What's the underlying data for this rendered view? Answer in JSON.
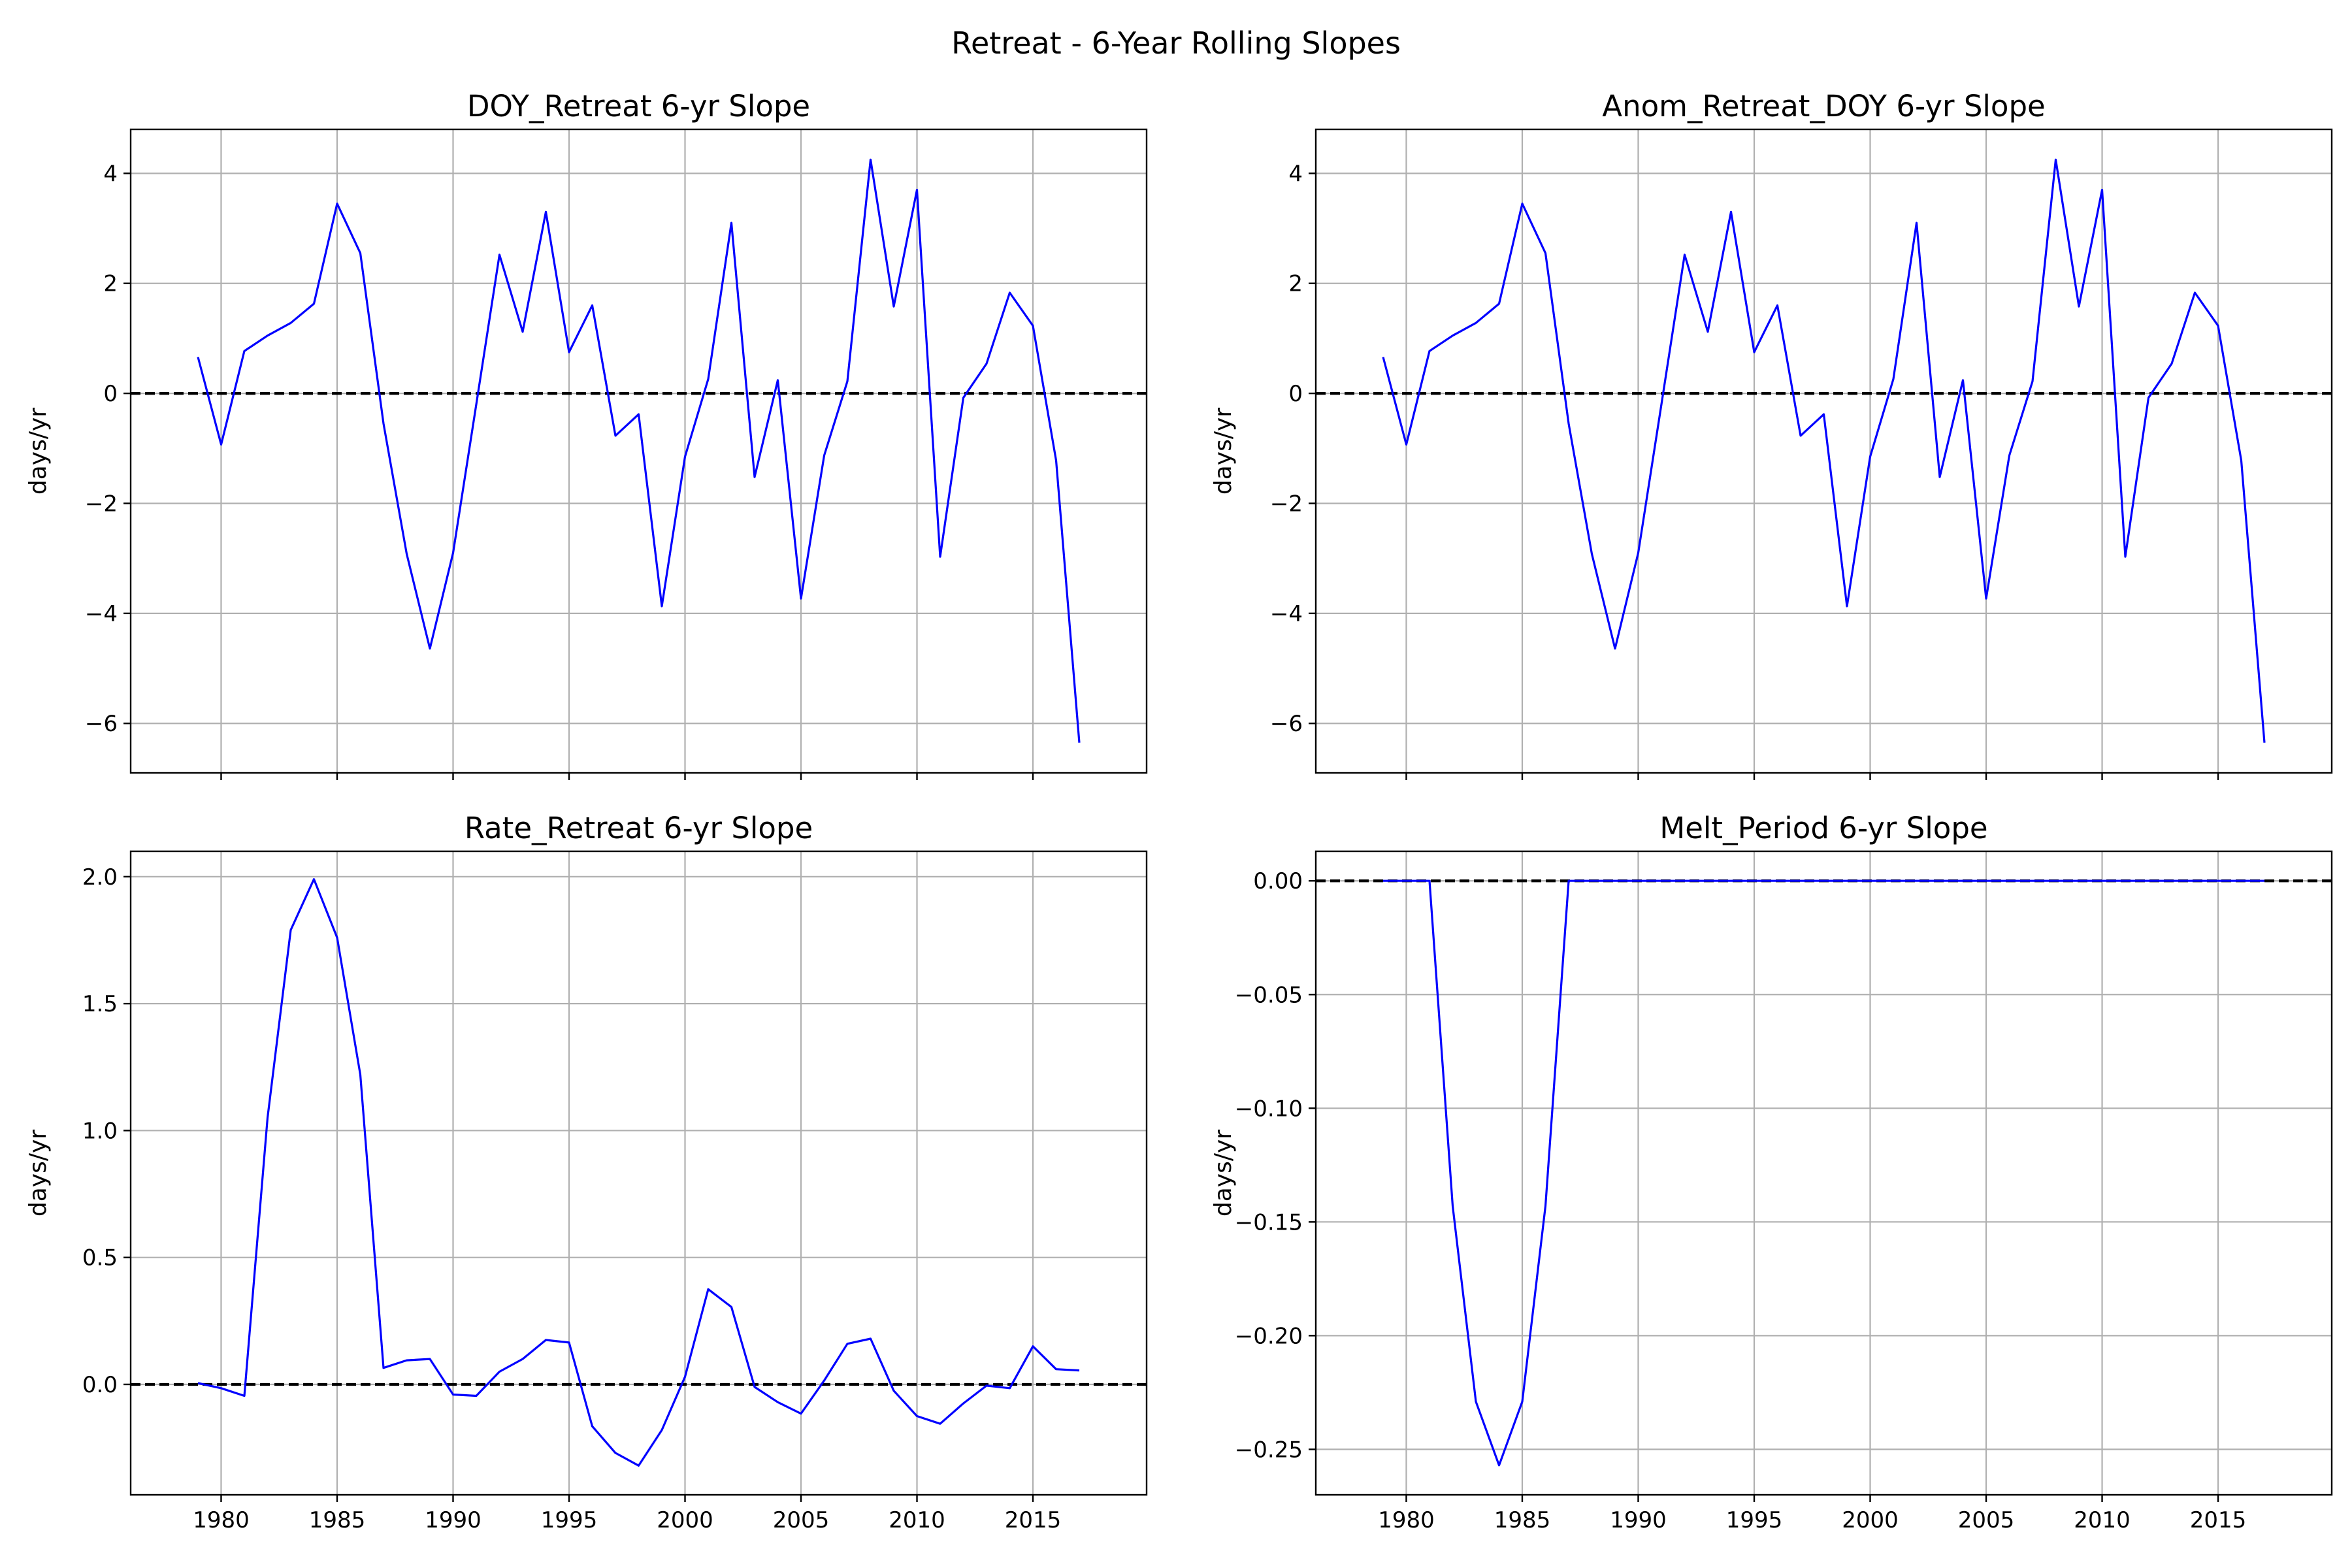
{
  "figure": {
    "suptitle": "Retreat - 6-Year Rolling Slopes"
  },
  "chart_data": [
    {
      "type": "line",
      "title": "DOY_Retreat 6-yr Slope",
      "ylabel": "days/yr",
      "xlabel": "",
      "xlim": [
        1976.1,
        2019.9
      ],
      "ylim": [
        -6.9,
        4.8
      ],
      "xticks": [
        1980,
        1985,
        1990,
        1995,
        2000,
        2005,
        2010,
        2015
      ],
      "yticks": [
        -6,
        -4,
        -2,
        0,
        2,
        4
      ],
      "show_xtick_labels": false,
      "grid": true,
      "zero_line": 0,
      "series_color": "#0000ff",
      "x": [
        1979,
        1980,
        1981,
        1982,
        1983,
        1984,
        1985,
        1986,
        1987,
        1988,
        1989,
        1990,
        1991,
        1992,
        1993,
        1994,
        1995,
        1996,
        1997,
        1998,
        1999,
        2000,
        2001,
        2002,
        2003,
        2004,
        2005,
        2006,
        2007,
        2008,
        2009,
        2010,
        2011,
        2012,
        2013,
        2014,
        2015,
        2016,
        2017
      ],
      "values": [
        0.66,
        -0.93,
        0.77,
        1.05,
        1.28,
        1.63,
        3.45,
        2.55,
        -0.55,
        -2.92,
        -4.64,
        -2.9,
        -0.2,
        2.52,
        1.12,
        3.3,
        0.75,
        1.6,
        -0.77,
        -0.38,
        -3.87,
        -1.15,
        0.26,
        3.1,
        -1.52,
        0.24,
        -3.73,
        -1.13,
        0.22,
        4.25,
        1.58,
        3.7,
        -2.97,
        -0.08,
        0.54,
        1.83,
        1.23,
        -1.22,
        -6.35
      ]
    },
    {
      "type": "line",
      "title": "Anom_Retreat_DOY 6-yr Slope",
      "ylabel": "days/yr",
      "xlabel": "",
      "xlim": [
        1976.1,
        2019.9
      ],
      "ylim": [
        -6.9,
        4.8
      ],
      "xticks": [
        1980,
        1985,
        1990,
        1995,
        2000,
        2005,
        2010,
        2015
      ],
      "yticks": [
        -6,
        -4,
        -2,
        0,
        2,
        4
      ],
      "show_xtick_labels": false,
      "grid": true,
      "zero_line": 0,
      "series_color": "#0000ff",
      "x": [
        1979,
        1980,
        1981,
        1982,
        1983,
        1984,
        1985,
        1986,
        1987,
        1988,
        1989,
        1990,
        1991,
        1992,
        1993,
        1994,
        1995,
        1996,
        1997,
        1998,
        1999,
        2000,
        2001,
        2002,
        2003,
        2004,
        2005,
        2006,
        2007,
        2008,
        2009,
        2010,
        2011,
        2012,
        2013,
        2014,
        2015,
        2016,
        2017
      ],
      "values": [
        0.66,
        -0.93,
        0.77,
        1.05,
        1.28,
        1.63,
        3.45,
        2.55,
        -0.55,
        -2.92,
        -4.64,
        -2.9,
        -0.2,
        2.52,
        1.12,
        3.3,
        0.75,
        1.6,
        -0.77,
        -0.38,
        -3.87,
        -1.15,
        0.26,
        3.1,
        -1.52,
        0.24,
        -3.73,
        -1.13,
        0.22,
        4.25,
        1.58,
        3.7,
        -2.97,
        -0.08,
        0.54,
        1.83,
        1.23,
        -1.22,
        -6.35
      ]
    },
    {
      "type": "line",
      "title": "Rate_Retreat 6-yr Slope",
      "ylabel": "days/yr",
      "xlabel": "",
      "xlim": [
        1976.1,
        2019.9
      ],
      "ylim": [
        -0.435,
        2.1
      ],
      "xticks": [
        1980,
        1985,
        1990,
        1995,
        2000,
        2005,
        2010,
        2015
      ],
      "yticks": [
        0.0,
        0.5,
        1.0,
        1.5,
        2.0
      ],
      "ytick_labels": [
        "0.0",
        "0.5",
        "1.0",
        "1.5",
        "2.0"
      ],
      "show_xtick_labels": true,
      "grid": true,
      "zero_line": 0,
      "series_color": "#0000ff",
      "x": [
        1979,
        1980,
        1981,
        1982,
        1983,
        1984,
        1985,
        1986,
        1987,
        1988,
        1989,
        1990,
        1991,
        1992,
        1993,
        1994,
        1995,
        1996,
        1997,
        1998,
        1999,
        2000,
        2001,
        2002,
        2003,
        2004,
        2005,
        2006,
        2007,
        2008,
        2009,
        2010,
        2011,
        2012,
        2013,
        2014,
        2015,
        2016,
        2017
      ],
      "values": [
        0.005,
        -0.015,
        -0.045,
        1.05,
        1.79,
        1.99,
        1.76,
        1.22,
        0.065,
        0.095,
        0.1,
        -0.04,
        -0.045,
        0.05,
        0.1,
        0.175,
        0.165,
        -0.165,
        -0.27,
        -0.32,
        -0.18,
        0.03,
        0.375,
        0.305,
        -0.01,
        -0.07,
        -0.115,
        0.015,
        0.16,
        0.18,
        -0.025,
        -0.125,
        -0.155,
        -0.075,
        -0.005,
        -0.015,
        0.15,
        0.06,
        0.055
      ]
    },
    {
      "type": "line",
      "title": "Melt_Period 6-yr Slope",
      "ylabel": "days/yr",
      "xlabel": "",
      "xlim": [
        1976.1,
        2019.9
      ],
      "ylim": [
        -0.27,
        0.013
      ],
      "xticks": [
        1980,
        1985,
        1990,
        1995,
        2000,
        2005,
        2010,
        2015
      ],
      "yticks": [
        0.0,
        -0.05,
        -0.1,
        -0.15,
        -0.2,
        -0.25
      ],
      "ytick_labels": [
        "0.00",
        "−0.05",
        "−0.10",
        "−0.15",
        "−0.20",
        "−0.25"
      ],
      "show_xtick_labels": true,
      "grid": true,
      "zero_line": 0,
      "series_color": "#0000ff",
      "x": [
        1979,
        1980,
        1981,
        1982,
        1983,
        1984,
        1985,
        1986,
        1987,
        1988,
        1989,
        1990,
        1991,
        1992,
        1993,
        1994,
        1995,
        1996,
        1997,
        1998,
        1999,
        2000,
        2001,
        2002,
        2003,
        2004,
        2005,
        2006,
        2007,
        2008,
        2009,
        2010,
        2011,
        2012,
        2013,
        2014,
        2015,
        2016,
        2017
      ],
      "values": [
        0,
        0,
        0,
        -0.143,
        -0.229,
        -0.257,
        -0.229,
        -0.143,
        0,
        0,
        0,
        0,
        0,
        0,
        0,
        0,
        0,
        0,
        0,
        0,
        0,
        0,
        0,
        0,
        0,
        0,
        0,
        0,
        0,
        0,
        0,
        0,
        0,
        0,
        0,
        0,
        0,
        0,
        0
      ]
    }
  ]
}
